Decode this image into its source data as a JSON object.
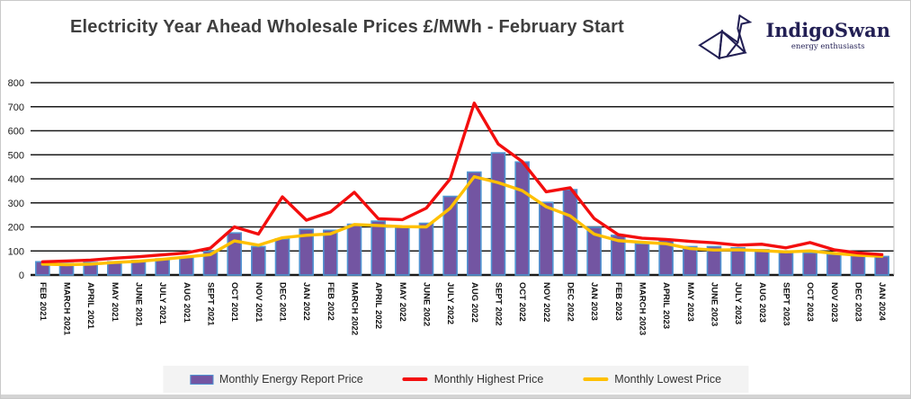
{
  "header": {
    "title": "Electricity Year Ahead Wholesale Prices £/MWh - February Start",
    "logo": {
      "name": "IndigoSwan",
      "tagline": "energy enthusiasts"
    }
  },
  "colors": {
    "bar_fill": "#7355a2",
    "bar_stroke": "#5094d2",
    "highest_line": "#f30e0e",
    "lowest_line": "#ffc000",
    "gridline": "#1a1a1a",
    "logo_navy": "#221f54",
    "legend_bg": "#f3f3f3",
    "title_text": "#3f3f3f"
  },
  "legend": {
    "items": [
      {
        "label": "Monthly Energy Report Price",
        "type": "bar"
      },
      {
        "label": "Monthly Highest Price",
        "type": "line"
      },
      {
        "label": "Monthly Lowest Price",
        "type": "line"
      }
    ]
  },
  "chart_data": {
    "type": "bar",
    "title": "Electricity Year Ahead Wholesale Prices £/MWh - February Start",
    "xlabel": "",
    "ylabel": "",
    "ylim": [
      0,
      800
    ],
    "ytick_labels": [
      "0",
      "100",
      "200",
      "300",
      "400",
      "500",
      "600",
      "700",
      "800"
    ],
    "grid": true,
    "legend_position": "bottom",
    "categories": [
      "FEB 2021",
      "MARCH 2021",
      "APRIL 2021",
      "MAY 2021",
      "JUNE 2021",
      "JULY 2021",
      "AUG 2021",
      "SEPT 2021",
      "OCT 2021",
      "NOV 2021",
      "DEC 2021",
      "JAN 2022",
      "FEB 2022",
      "MARCH 2022",
      "APRIL 2022",
      "MAY 2022",
      "JUNE 2022",
      "JULY 2022",
      "AUG 2022",
      "SEPT 2022",
      "OCT 2022",
      "NOV 2022",
      "DEC 2022",
      "JAN 2023",
      "FEB 2023",
      "MARCH 2023",
      "APRIL 2023",
      "MAY 2023",
      "JUNE 2023",
      "JULY 2023",
      "AUG 2023",
      "SEPT 2023",
      "OCT 2023",
      "NOV 2023",
      "DEC 2023",
      "JAN 2024"
    ],
    "series": [
      {
        "name": "Monthly Energy Report Price",
        "type": "bar",
        "values": [
          55,
          48,
          52,
          55,
          60,
          67,
          73,
          98,
          175,
          118,
          150,
          190,
          186,
          211,
          224,
          201,
          215,
          327,
          428,
          508,
          470,
          302,
          355,
          198,
          165,
          130,
          146,
          118,
          118,
          113,
          105,
          95,
          92,
          86,
          80,
          77
        ]
      },
      {
        "name": "Monthly Highest Price",
        "type": "line",
        "values": [
          55,
          58,
          62,
          70,
          76,
          84,
          92,
          112,
          200,
          170,
          325,
          228,
          262,
          344,
          234,
          230,
          278,
          400,
          715,
          545,
          472,
          346,
          363,
          235,
          168,
          153,
          148,
          140,
          134,
          124,
          128,
          113,
          135,
          105,
          92,
          85
        ]
      },
      {
        "name": "Monthly Lowest Price",
        "type": "line",
        "values": [
          45,
          43,
          45,
          52,
          57,
          65,
          75,
          85,
          142,
          124,
          155,
          165,
          171,
          210,
          206,
          201,
          200,
          278,
          409,
          384,
          351,
          284,
          246,
          170,
          143,
          136,
          130,
          110,
          104,
          105,
          101,
          96,
          100,
          90,
          82,
          78
        ]
      }
    ]
  }
}
